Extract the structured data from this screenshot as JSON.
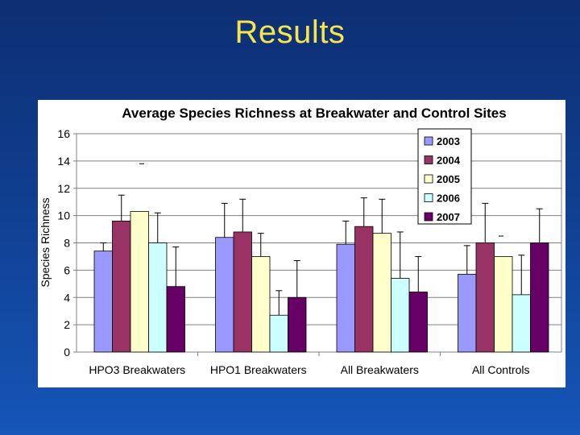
{
  "slide": {
    "title": "Results"
  },
  "chart_data": {
    "type": "bar",
    "title": "Average Species Richness at Breakwater and Control Sites",
    "xlabel": "",
    "ylabel": "Species Richness",
    "ylim": [
      0,
      16
    ],
    "yticks": [
      0,
      2,
      4,
      6,
      8,
      10,
      12,
      14,
      16
    ],
    "grid": true,
    "legend_position": "top-right",
    "categories": [
      "HPO3 Breakwaters",
      "HPO1 Breakwaters",
      "All Breakwaters",
      "All Controls"
    ],
    "series": [
      {
        "name": "2003",
        "color": "#9999ff",
        "values": [
          7.4,
          8.4,
          7.9,
          5.7
        ],
        "error": [
          0.6,
          2.5,
          1.7,
          2.1
        ]
      },
      {
        "name": "2004",
        "color": "#993366",
        "values": [
          9.6,
          8.8,
          9.2,
          8.0
        ],
        "error": [
          1.9,
          2.4,
          2.1,
          2.9
        ]
      },
      {
        "name": "2005",
        "color": "#ffffcc",
        "values": [
          10.3,
          7.0,
          8.7,
          7.0
        ],
        "error": [
          null,
          1.7,
          2.5,
          null
        ]
      },
      {
        "name": "2006",
        "color": "#ccffff",
        "values": [
          8.0,
          2.7,
          5.4,
          4.2
        ],
        "error": [
          2.2,
          1.8,
          3.4,
          2.9
        ]
      },
      {
        "name": "2007",
        "color": "#660066",
        "values": [
          4.8,
          4.0,
          4.4,
          8.0
        ],
        "error": [
          2.9,
          2.7,
          2.6,
          2.5
        ]
      }
    ]
  }
}
